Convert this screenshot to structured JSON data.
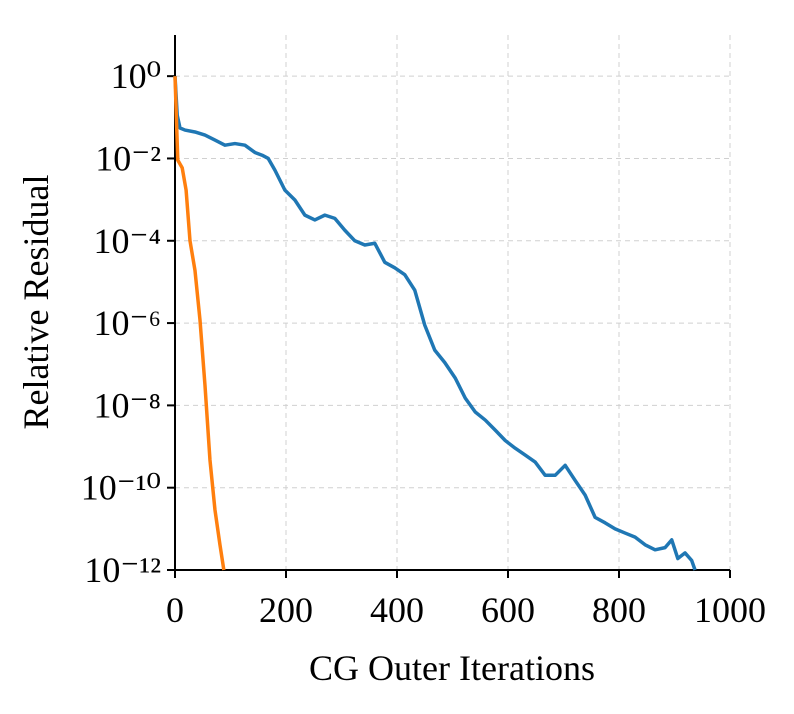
{
  "chart_data": {
    "type": "line",
    "xlabel": "CG Outer Iterations",
    "ylabel": "Relative Residual",
    "ylog": true,
    "grid": true,
    "xlim": [
      0,
      1000
    ],
    "xticks": [
      0,
      200,
      400,
      600,
      800,
      1000
    ],
    "ylim": [
      1e-12,
      10
    ],
    "yticks": [
      {
        "value": 1,
        "label": "10⁰"
      },
      {
        "value": 0.01,
        "label": "10⁻²"
      },
      {
        "value": 0.0001,
        "label": "10⁻⁴"
      },
      {
        "value": 1e-06,
        "label": "10⁻⁶"
      },
      {
        "value": 1e-08,
        "label": "10⁻⁸"
      },
      {
        "value": 1e-10,
        "label": "10⁻¹⁰"
      },
      {
        "value": 1e-12,
        "label": "10⁻¹²"
      }
    ],
    "series": [
      {
        "color": "#1f77b4",
        "x": [
          0,
          4,
          9,
          18,
          36,
          54,
          72,
          90,
          108,
          126,
          144,
          157,
          168,
          180,
          198,
          216,
          234,
          252,
          270,
          288,
          306,
          324,
          342,
          360,
          378,
          396,
          414,
          432,
          450,
          468,
          486,
          505,
          523,
          541,
          559,
          577,
          595,
          613,
          631,
          649,
          667,
          685,
          703,
          721,
          739,
          757,
          775,
          793,
          811,
          829,
          847,
          865,
          883,
          895,
          906,
          919,
          931,
          937
        ],
        "values": [
          1,
          0.112,
          0.055,
          0.049,
          0.044,
          0.037,
          0.028,
          0.021,
          0.023,
          0.021,
          0.014,
          0.012,
          0.01,
          0.0052,
          0.0017,
          0.00098,
          0.00042,
          0.00032,
          0.00042,
          0.00035,
          0.00018,
          0.0001,
          7.9e-05,
          8.7e-05,
          3e-05,
          2.2e-05,
          1.5e-05,
          6.3e-06,
          8.9e-07,
          2.2e-07,
          1.1e-07,
          4.6e-08,
          1.5e-08,
          6.9e-09,
          4.4e-09,
          2.5e-09,
          1.4e-09,
          9.1e-10,
          6.2e-10,
          4.2e-10,
          2e-10,
          2e-10,
          3.5e-10,
          1.5e-10,
          6.6e-11,
          1.9e-11,
          1.4e-11,
          1e-11,
          7.9e-12,
          6.3e-12,
          4.1e-12,
          3.1e-12,
          3.5e-12,
          5.4e-12,
          1.9e-12,
          2.6e-12,
          1.7e-12,
          1e-12
        ]
      },
      {
        "color": "#ff7f0e",
        "x": [
          0,
          5,
          13,
          20,
          27,
          36,
          45,
          54,
          63,
          72,
          81,
          88
        ],
        "values": [
          1,
          0.0091,
          0.0059,
          0.0017,
          0.0001,
          1.9e-05,
          1.2e-06,
          3.1e-08,
          4.7e-10,
          2.9e-11,
          4.1e-12,
          1e-12
        ]
      }
    ]
  }
}
